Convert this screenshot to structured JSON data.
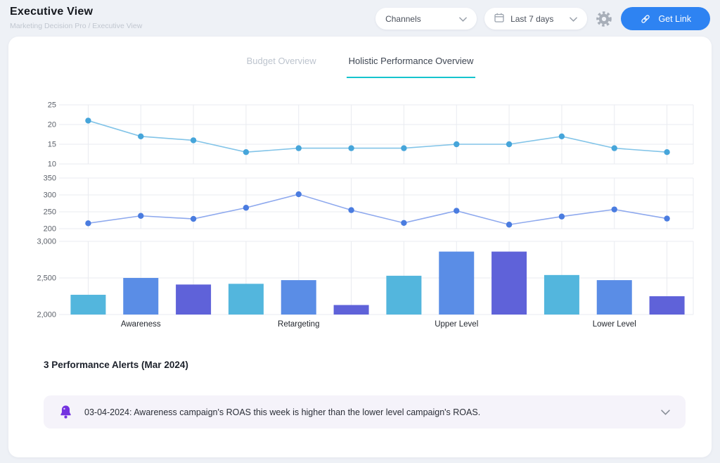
{
  "theme": {
    "accent_teal": "#16c4ce",
    "primary_blue": "#2e83f2",
    "alert_purple": "#7433e0",
    "alert_bg": "#f5f3fa"
  },
  "header": {
    "title": "Executive View",
    "breadcrumb": "Marketing Decision Pro / Executive View",
    "channels_label": "Channels",
    "date_range_label": "Last 7 days",
    "get_link_label": "Get Link"
  },
  "tabs": [
    {
      "label": "Budget Overview",
      "active": false
    },
    {
      "label": "Holistic Performance Overview",
      "active": true
    }
  ],
  "chart_data": [
    {
      "type": "line",
      "name": "metric-line-chart-top",
      "values": [
        21,
        17,
        16,
        13,
        14,
        14,
        14,
        15,
        15,
        17,
        14,
        13
      ],
      "yticks": [
        10,
        15,
        20,
        25
      ],
      "ylim": [
        10,
        25
      ],
      "xlabel": "",
      "ylabel": "",
      "title": "",
      "grid": true,
      "line_color": "#82c4e8",
      "point_color": "#46a5da"
    },
    {
      "type": "line",
      "name": "metric-line-chart-middle",
      "values": [
        216,
        238,
        229,
        262,
        302,
        255,
        217,
        253,
        212,
        236,
        257,
        230
      ],
      "yticks": [
        200,
        250,
        300,
        350
      ],
      "ylim": [
        200,
        350
      ],
      "xlabel": "",
      "ylabel": "",
      "title": "",
      "grid": true,
      "line_color": "#8ea9ee",
      "point_color": "#4a7ce0"
    },
    {
      "type": "bar",
      "name": "campaign-bar-chart",
      "values": [
        2270,
        2500,
        2410,
        2420,
        2470,
        2130,
        2530,
        2860,
        2860,
        2540,
        2470,
        2250
      ],
      "yticks": [
        2000,
        2500,
        3000
      ],
      "ylim": [
        2000,
        3000
      ],
      "xlabel": "",
      "ylabel": "",
      "title": "",
      "grid": true,
      "bar_colors": [
        "#53b6dd",
        "#5a8de6",
        "#5f62d9"
      ],
      "group_labels": [
        {
          "label": "Awareness",
          "slot": 1
        },
        {
          "label": "Retargeting",
          "slot": 4
        },
        {
          "label": "Upper Level",
          "slot": 7
        },
        {
          "label": "Lower Level",
          "slot": 10
        }
      ]
    }
  ],
  "alerts": {
    "section_title": "3 Performance Alerts (Mar 2024)",
    "items": [
      {
        "text": "03-04-2024: Awareness campaign's ROAS this week is higher than the lower level campaign's ROAS."
      }
    ]
  }
}
